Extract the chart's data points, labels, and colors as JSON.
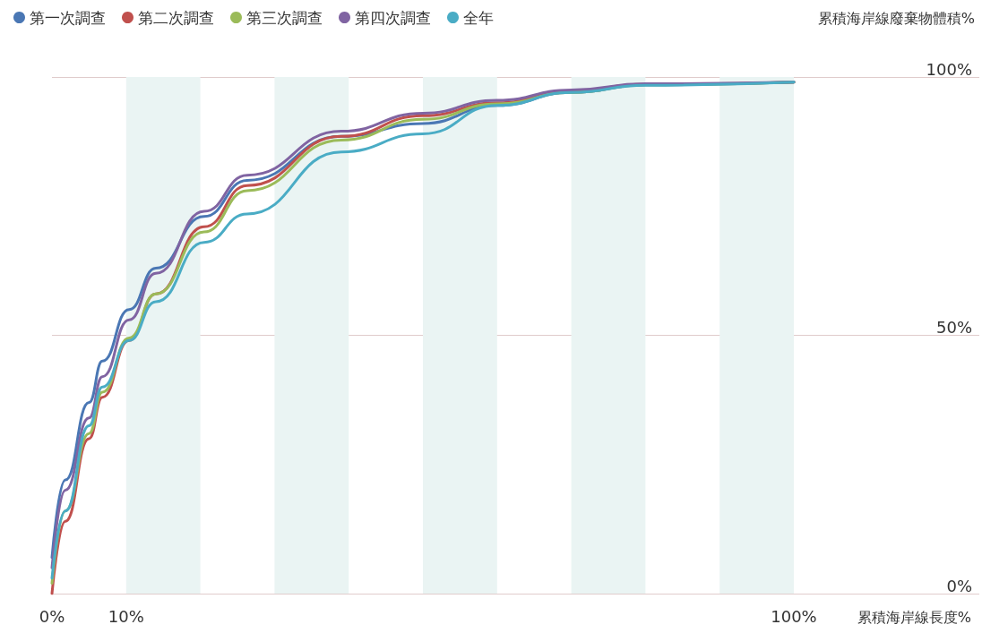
{
  "chart_data": {
    "type": "line",
    "ylabel": "累積海岸線廢棄物體積%",
    "xlabel": "累積海岸線長度%",
    "xlim": [
      0,
      125
    ],
    "xticks": [
      {
        "value": 0,
        "label": "0%"
      },
      {
        "value": 10,
        "label": "10%"
      },
      {
        "value": 100,
        "label": "100%"
      }
    ],
    "ylim": [
      0,
      100
    ],
    "yticks": [
      {
        "value": 0,
        "label": "0%"
      },
      {
        "value": 50,
        "label": "50%"
      },
      {
        "value": 100,
        "label": "100%"
      }
    ],
    "grid": "y",
    "legend": "top left",
    "marker": "none",
    "line_style": "solid",
    "x": [
      0,
      1.8,
      5,
      6.8,
      10.4,
      14,
      20.5,
      26.3,
      39,
      50,
      60,
      70,
      80,
      100
    ],
    "series": [
      {
        "name": "第一次調查",
        "color": "#4a77b4",
        "values": [
          7,
          22,
          37,
          45,
          55,
          63,
          73,
          80,
          88.5,
          91,
          94.5,
          97,
          98.5,
          99
        ]
      },
      {
        "name": "第二次調查",
        "color": "#c0504d",
        "values": [
          0,
          14,
          30,
          38,
          49,
          58,
          71,
          79,
          88.5,
          92.5,
          95,
          97.3,
          98.6,
          99
        ]
      },
      {
        "name": "第三次調查",
        "color": "#9bbb59",
        "values": [
          2,
          16,
          31,
          39,
          49.5,
          58,
          70,
          78,
          87.8,
          91.8,
          94.8,
          97,
          98.5,
          99
        ]
      },
      {
        "name": "第四次調查",
        "color": "#8064a2",
        "values": [
          5,
          20,
          34,
          42,
          53,
          62,
          74,
          81,
          89.5,
          93,
          95.5,
          97.5,
          98.7,
          99
        ]
      },
      {
        "name": "全年",
        "color": "#4aacc5",
        "values": [
          3,
          16,
          32.5,
          40,
          49,
          56.5,
          68,
          73.5,
          85.5,
          89,
          94.5,
          97,
          98.4,
          99
        ]
      }
    ],
    "bands": [
      {
        "axis": "x",
        "from": 10,
        "to": 20,
        "color": "#eaf4f3"
      },
      {
        "axis": "x",
        "from": 30,
        "to": 40,
        "color": "#eaf4f3"
      },
      {
        "axis": "x",
        "from": 50,
        "to": 60,
        "color": "#eaf4f3"
      },
      {
        "axis": "x",
        "from": 70,
        "to": 80,
        "color": "#eaf4f3"
      },
      {
        "axis": "x",
        "from": 90,
        "to": 100,
        "color": "#eaf4f3"
      }
    ]
  }
}
